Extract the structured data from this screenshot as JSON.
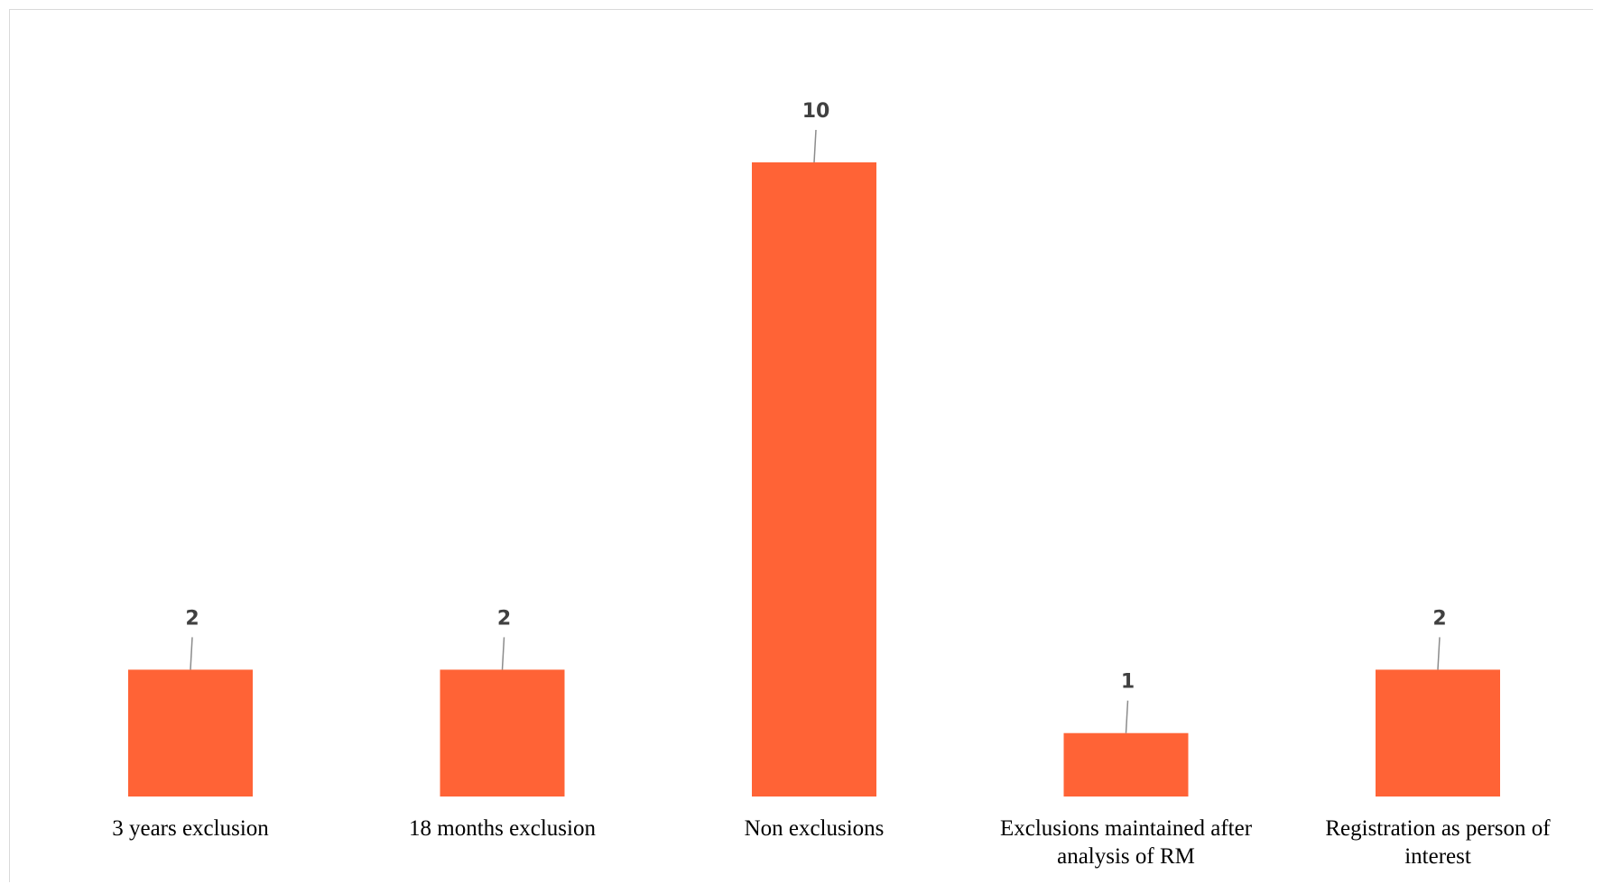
{
  "chart_data": {
    "type": "bar",
    "categories": [
      [
        "3 years exclusion"
      ],
      [
        "18 months exclusion"
      ],
      [
        "Non exclusions"
      ],
      [
        "Exclusions maintained after",
        "analysis of RM"
      ],
      [
        "Registration as person of",
        "interest"
      ]
    ],
    "values": [
      2,
      2,
      10,
      1,
      2
    ],
    "ylim": [
      0,
      10
    ],
    "grid": false,
    "legend": "none",
    "bar_color": "#ff6336",
    "title": "",
    "xlabel": "",
    "ylabel": ""
  }
}
